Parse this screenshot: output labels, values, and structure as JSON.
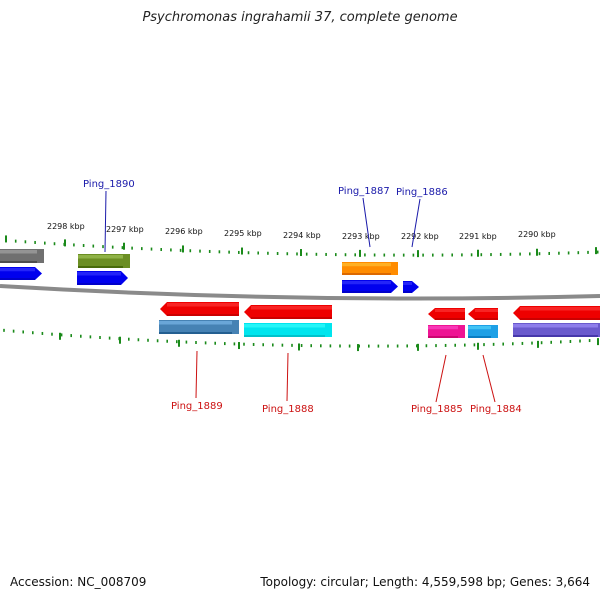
{
  "title": "Psychromonas ingrahamii 37, complete genome",
  "footer": {
    "accession": "Accession: NC_008709",
    "summary": "Topology: circular; Length: 4,559,598 bp; Genes: 3,664"
  },
  "scale_labels": [
    "2298 kbp",
    "2297 kbp",
    "2296 kbp",
    "2295 kbp",
    "2294 kbp",
    "2293 kbp",
    "2292 kbp",
    "2291 kbp",
    "2290 kbp"
  ],
  "gene_labels": {
    "forward": [
      "Ping_1890",
      "Ping_1887",
      "Ping_1886"
    ],
    "reverse": [
      "Ping_1889",
      "Ping_1888",
      "Ping_1885",
      "Ping_1884"
    ]
  },
  "colors": {
    "backbone": "#8a8a8a",
    "tick": "#1a8a1a",
    "forward_label": "#1a1aaa",
    "reverse_label": "#cc1111",
    "cds": "#0000ee",
    "reverse_cds": "#ee0000",
    "feature_gray": "#707070",
    "feature_olive": "#6b8e23",
    "feature_orange": "#ff8c00",
    "feature_steelblue": "#4682b4",
    "feature_cyan": "#00e5ee",
    "feature_pink": "#ee1493",
    "feature_skyblue": "#1ea0e6",
    "feature_purple": "#6a5acd"
  }
}
